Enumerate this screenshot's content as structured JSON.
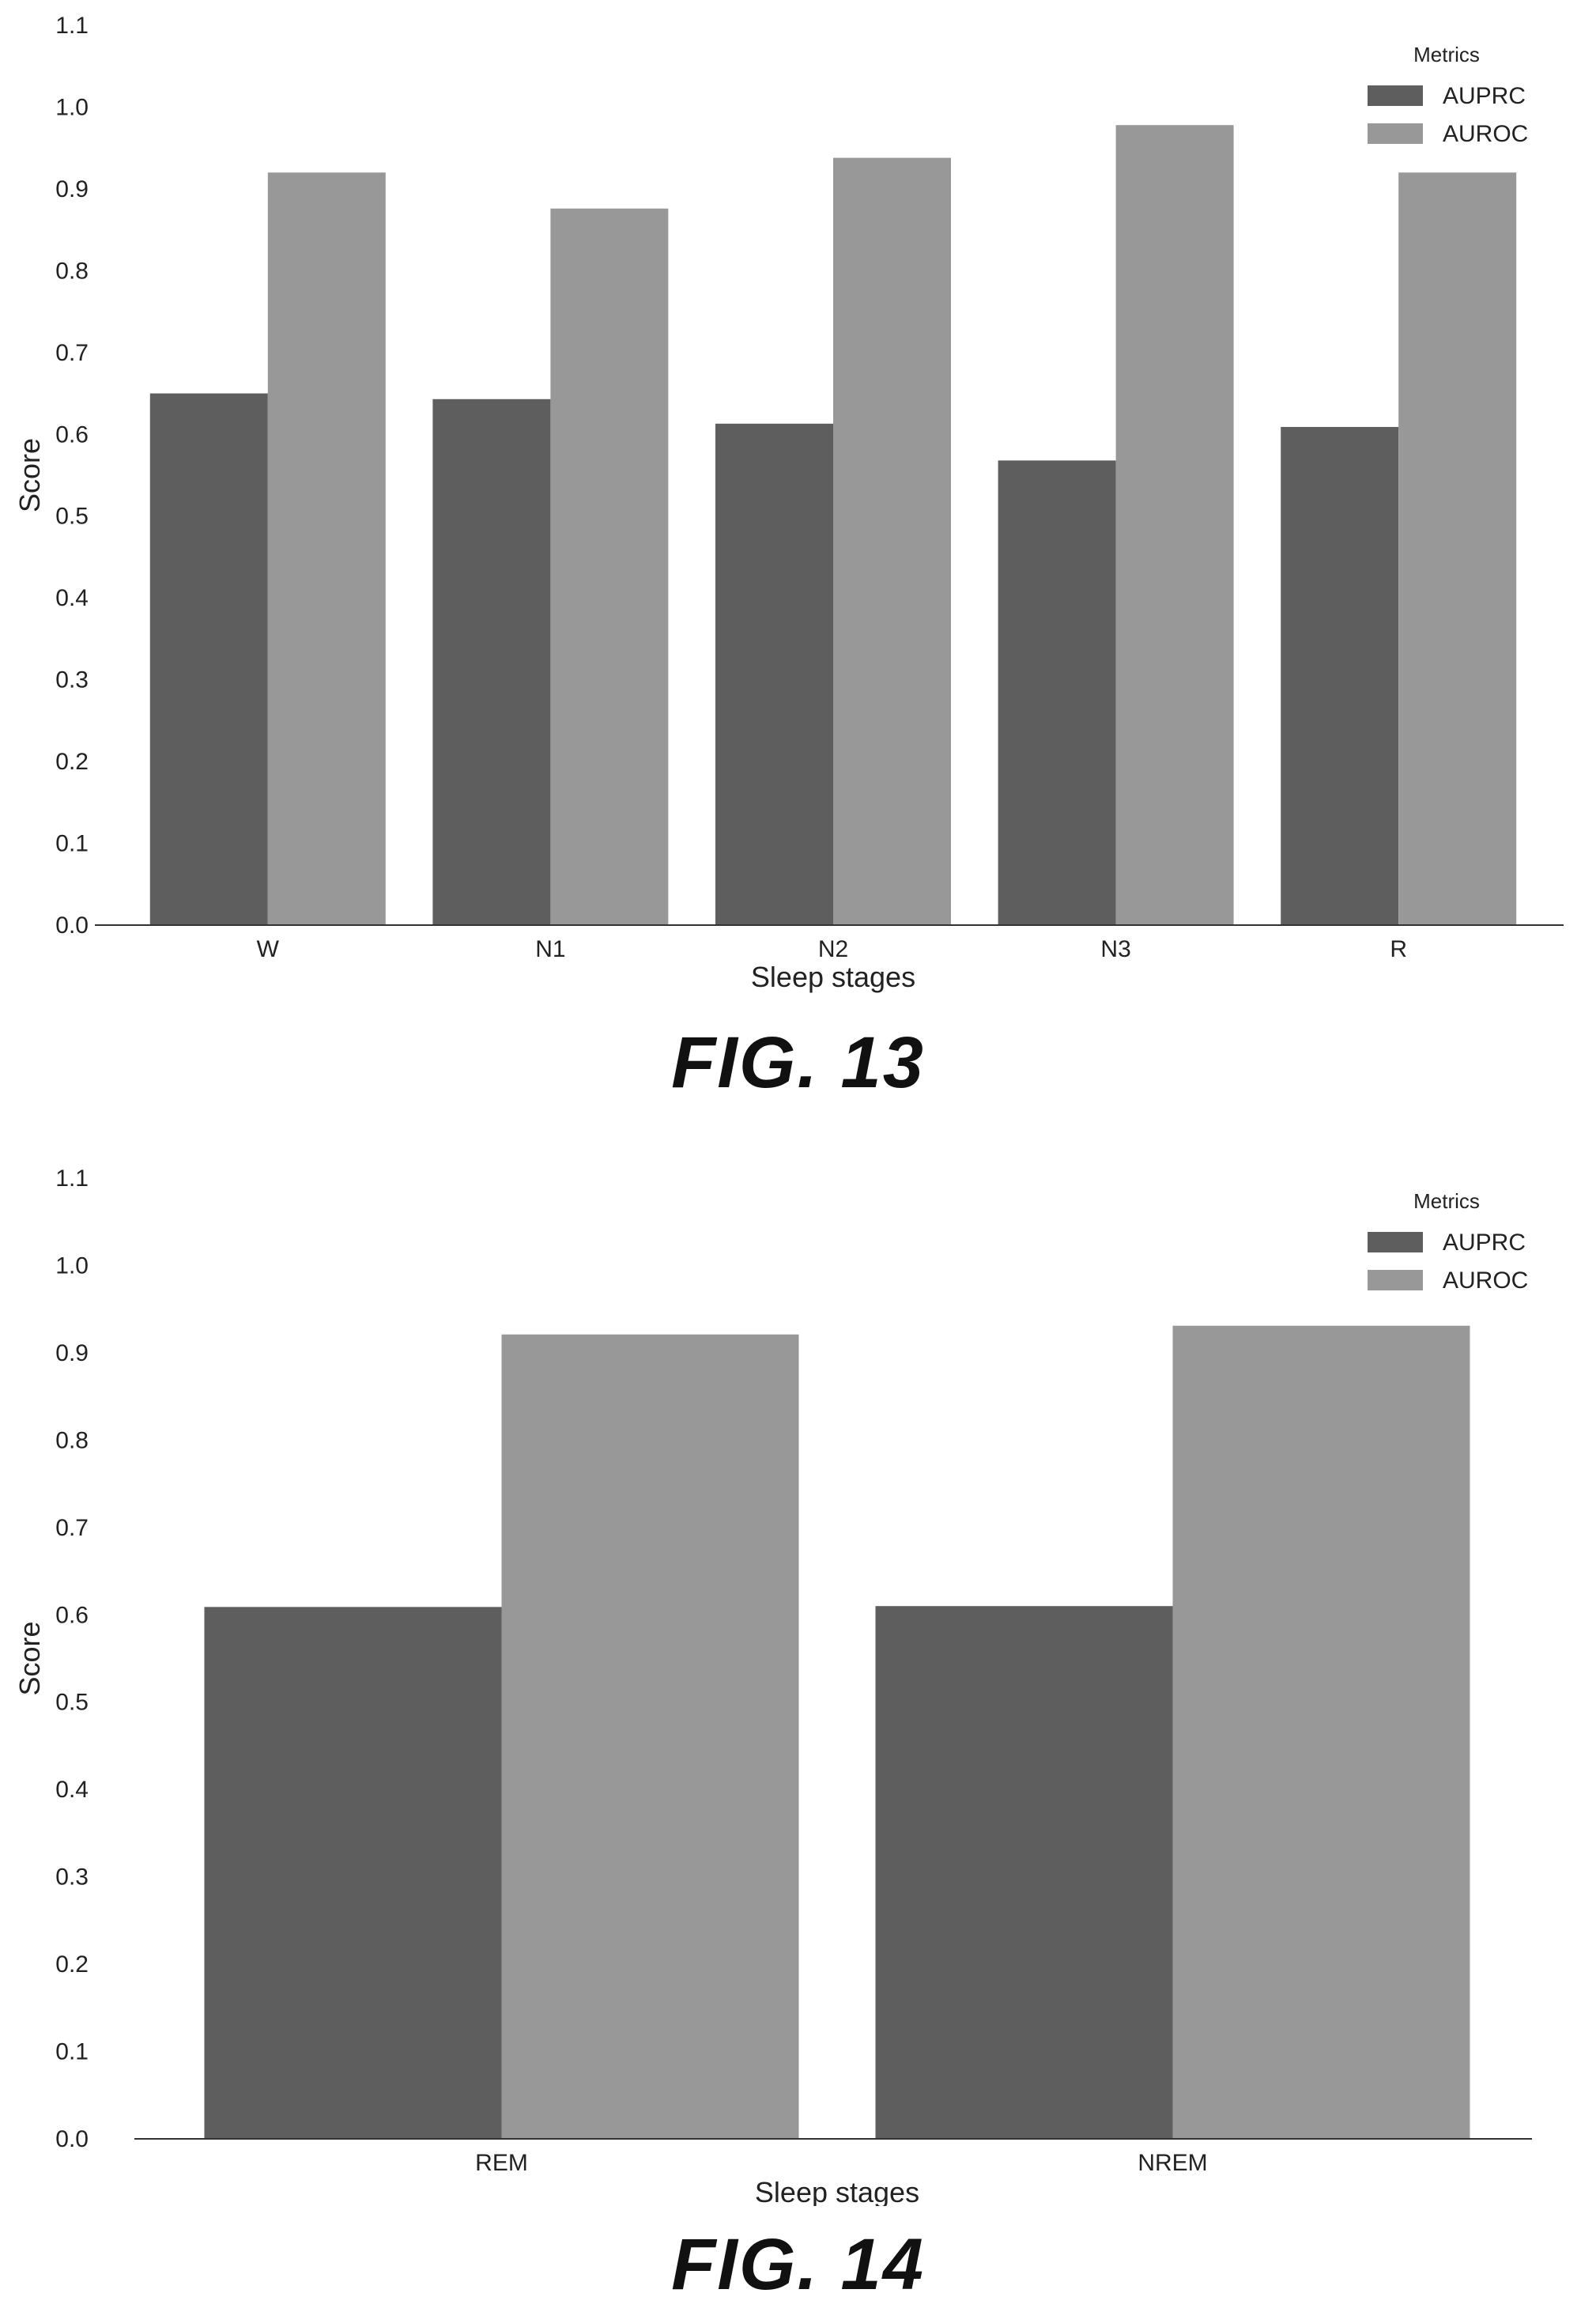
{
  "colors": {
    "AUPRC": "#5e5e5e",
    "AUROC": "#989898",
    "axis": "#333333"
  },
  "chart_data": [
    {
      "type": "bar",
      "caption": "FIG. 13",
      "xlabel": "Sleep stages",
      "ylabel": "Score",
      "ylim": [
        0,
        1.1
      ],
      "yticks": [
        "0.0",
        "0.1",
        "0.2",
        "0.3",
        "0.4",
        "0.5",
        "0.6",
        "0.7",
        "0.8",
        "0.9",
        "1.0",
        "1.1"
      ],
      "categories": [
        "W",
        "N1",
        "N2",
        "N3",
        "R"
      ],
      "legend_title": "Metrics",
      "legend_position": "top-right",
      "series": [
        {
          "name": "AUPRC",
          "values": [
            0.65,
            0.643,
            0.613,
            0.568,
            0.609
          ]
        },
        {
          "name": "AUROC",
          "values": [
            0.92,
            0.876,
            0.938,
            0.978,
            0.92
          ]
        }
      ]
    },
    {
      "type": "bar",
      "caption": "FIG. 14",
      "xlabel": "Sleep stages",
      "ylabel": "Score",
      "ylim": [
        0,
        1.1
      ],
      "yticks": [
        "0.0",
        "0.1",
        "0.2",
        "0.3",
        "0.4",
        "0.5",
        "0.6",
        "0.7",
        "0.8",
        "0.9",
        "1.0",
        "1.1"
      ],
      "categories": [
        "REM",
        "NREM"
      ],
      "legend_title": "Metrics",
      "legend_position": "top-right",
      "series": [
        {
          "name": "AUPRC",
          "values": [
            0.609,
            0.61
          ]
        },
        {
          "name": "AUROC",
          "values": [
            0.921,
            0.931
          ]
        }
      ]
    }
  ]
}
